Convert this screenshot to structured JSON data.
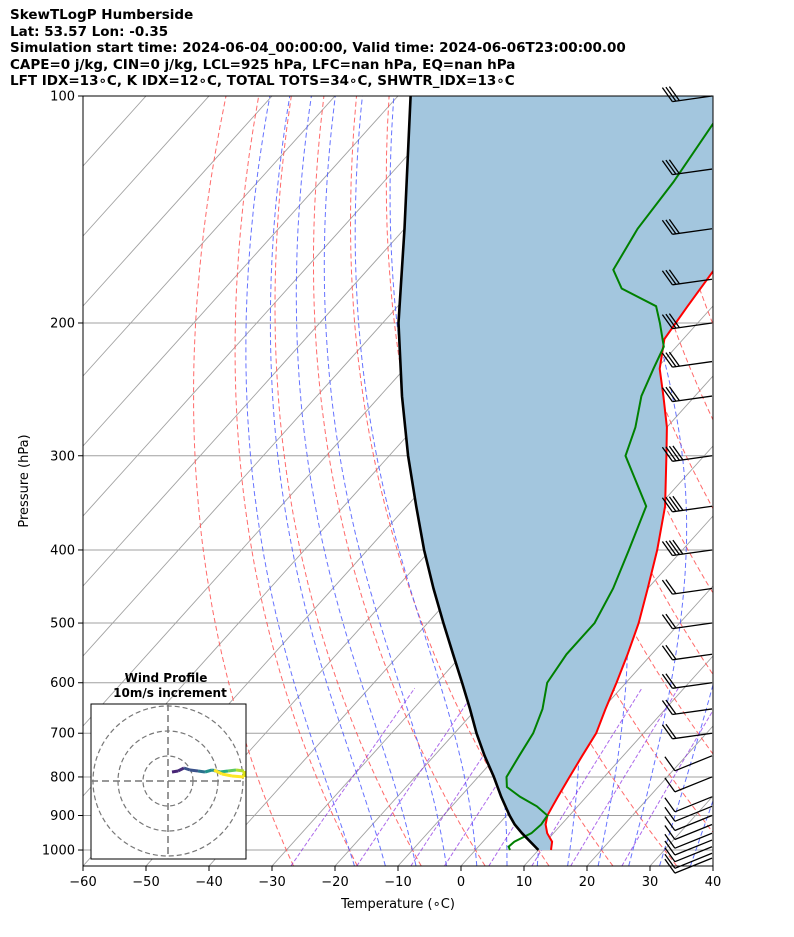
{
  "header": {
    "line1": "SkewTLogP Humberside",
    "line2": "Lat: 53.57   Lon: -0.35",
    "line3": "Simulation start time: 2024-06-04_00:00:00, Valid time: 2024-06-06T23:00:00.00",
    "line4": "CAPE=0 j/kg, CIN=0 j/kg, LCL=925 hPa, LFC=nan hPa, EQ=nan hPa",
    "line5": "LFT IDX=13∘C, K IDX=12∘C, TOTAL TOTS=34∘C, SHWTR_IDX=13∘C"
  },
  "chart_data": {
    "type": "line",
    "subtype": "skew-t log-p",
    "xlabel": "Temperature (∘C)",
    "ylabel": "Pressure (hPa)",
    "xlim": [
      -60,
      40
    ],
    "ylim": [
      1050,
      100
    ],
    "y_scale": "log",
    "grid": true,
    "x_ticks": [
      -60,
      -50,
      -40,
      -30,
      -20,
      -10,
      0,
      10,
      20,
      30,
      40
    ],
    "x_tick_labels": [
      "−60",
      "−50",
      "−40",
      "−30",
      "−20",
      "−10",
      "0",
      "10",
      "20",
      "30",
      "40"
    ],
    "y_ticks": [
      1000,
      900,
      800,
      700,
      600,
      500,
      400,
      300,
      200,
      100
    ],
    "y_tick_labels": [
      "1000",
      "900",
      "800",
      "700",
      "600",
      "500",
      "400",
      "300",
      "200",
      "100"
    ],
    "colors": {
      "temperature": "#ff0000",
      "dewpoint": "#008000",
      "parcel": "#000000",
      "fill": "#a3c6de",
      "dry_adiabats": "#ff5050",
      "moist_adiabats": "#4b5bff",
      "mixing_ratio": "#8a2be2",
      "isotherms": "#a0a0a0"
    },
    "series": [
      {
        "name": "temperature",
        "points": [
          [
            1000,
            12.0
          ],
          [
            975,
            11.0
          ],
          [
            950,
            9.0
          ],
          [
            925,
            7.5
          ],
          [
            900,
            6.5
          ],
          [
            875,
            6.0
          ],
          [
            850,
            5.5
          ],
          [
            800,
            4.5
          ],
          [
            750,
            3.5
          ],
          [
            700,
            2.5
          ],
          [
            650,
            0.5
          ],
          [
            600,
            -1.5
          ],
          [
            550,
            -3.8
          ],
          [
            500,
            -6.5
          ],
          [
            450,
            -10.0
          ],
          [
            400,
            -14.0
          ],
          [
            350,
            -19.0
          ],
          [
            300,
            -26.0
          ],
          [
            275,
            -30.0
          ],
          [
            250,
            -35.0
          ],
          [
            230,
            -39.5
          ],
          [
            210,
            -43.0
          ],
          [
            190,
            -44.0
          ],
          [
            170,
            -45.0
          ],
          [
            150,
            -47.5
          ],
          [
            130,
            -50.0
          ],
          [
            115,
            -51.0
          ],
          [
            100,
            -53.5
          ]
        ]
      },
      {
        "name": "dewpoint",
        "points": [
          [
            1000,
            5.5
          ],
          [
            990,
            4.8
          ],
          [
            975,
            5.0
          ],
          [
            950,
            6.5
          ],
          [
            925,
            6.8
          ],
          [
            900,
            6.5
          ],
          [
            875,
            3.5
          ],
          [
            850,
            -0.5
          ],
          [
            825,
            -4.0
          ],
          [
            800,
            -5.5
          ],
          [
            750,
            -6.5
          ],
          [
            700,
            -7.5
          ],
          [
            650,
            -9.5
          ],
          [
            600,
            -12.5
          ],
          [
            550,
            -13.5
          ],
          [
            500,
            -13.5
          ],
          [
            450,
            -15.5
          ],
          [
            400,
            -18.5
          ],
          [
            350,
            -22.0
          ],
          [
            300,
            -32.5
          ],
          [
            275,
            -35.0
          ],
          [
            250,
            -38.5
          ],
          [
            230,
            -40.5
          ],
          [
            215,
            -42.0
          ],
          [
            200,
            -46.0
          ],
          [
            190,
            -49.0
          ],
          [
            180,
            -57.0
          ],
          [
            170,
            -61.0
          ],
          [
            150,
            -63.0
          ],
          [
            130,
            -64.0
          ],
          [
            100,
            -67.0
          ]
        ]
      },
      {
        "name": "parcel",
        "points": [
          [
            1000,
            10.0
          ],
          [
            950,
            5.0
          ],
          [
            925,
            2.6
          ],
          [
            900,
            0.5
          ],
          [
            850,
            -3.5
          ],
          [
            800,
            -7.5
          ],
          [
            750,
            -12.0
          ],
          [
            700,
            -16.5
          ],
          [
            650,
            -21.0
          ],
          [
            600,
            -26.0
          ],
          [
            550,
            -31.5
          ],
          [
            500,
            -37.5
          ],
          [
            450,
            -44.0
          ],
          [
            400,
            -51.0
          ],
          [
            350,
            -58.5
          ],
          [
            300,
            -67.0
          ],
          [
            250,
            -76.5
          ],
          [
            200,
            -87.5
          ],
          [
            150,
            -100.0
          ],
          [
            100,
            -118.0
          ]
        ]
      }
    ],
    "wind_barbs_hpa": [
      1025,
      1010,
      990,
      970,
      950,
      925,
      900,
      875,
      850,
      800,
      750,
      700,
      650,
      600,
      550,
      500,
      450,
      400,
      350,
      300,
      250,
      225,
      200,
      175,
      150,
      125,
      100
    ],
    "inset": {
      "title": "Wind Profile",
      "subtitle": "10m/s increment",
      "rings": 3
    }
  }
}
